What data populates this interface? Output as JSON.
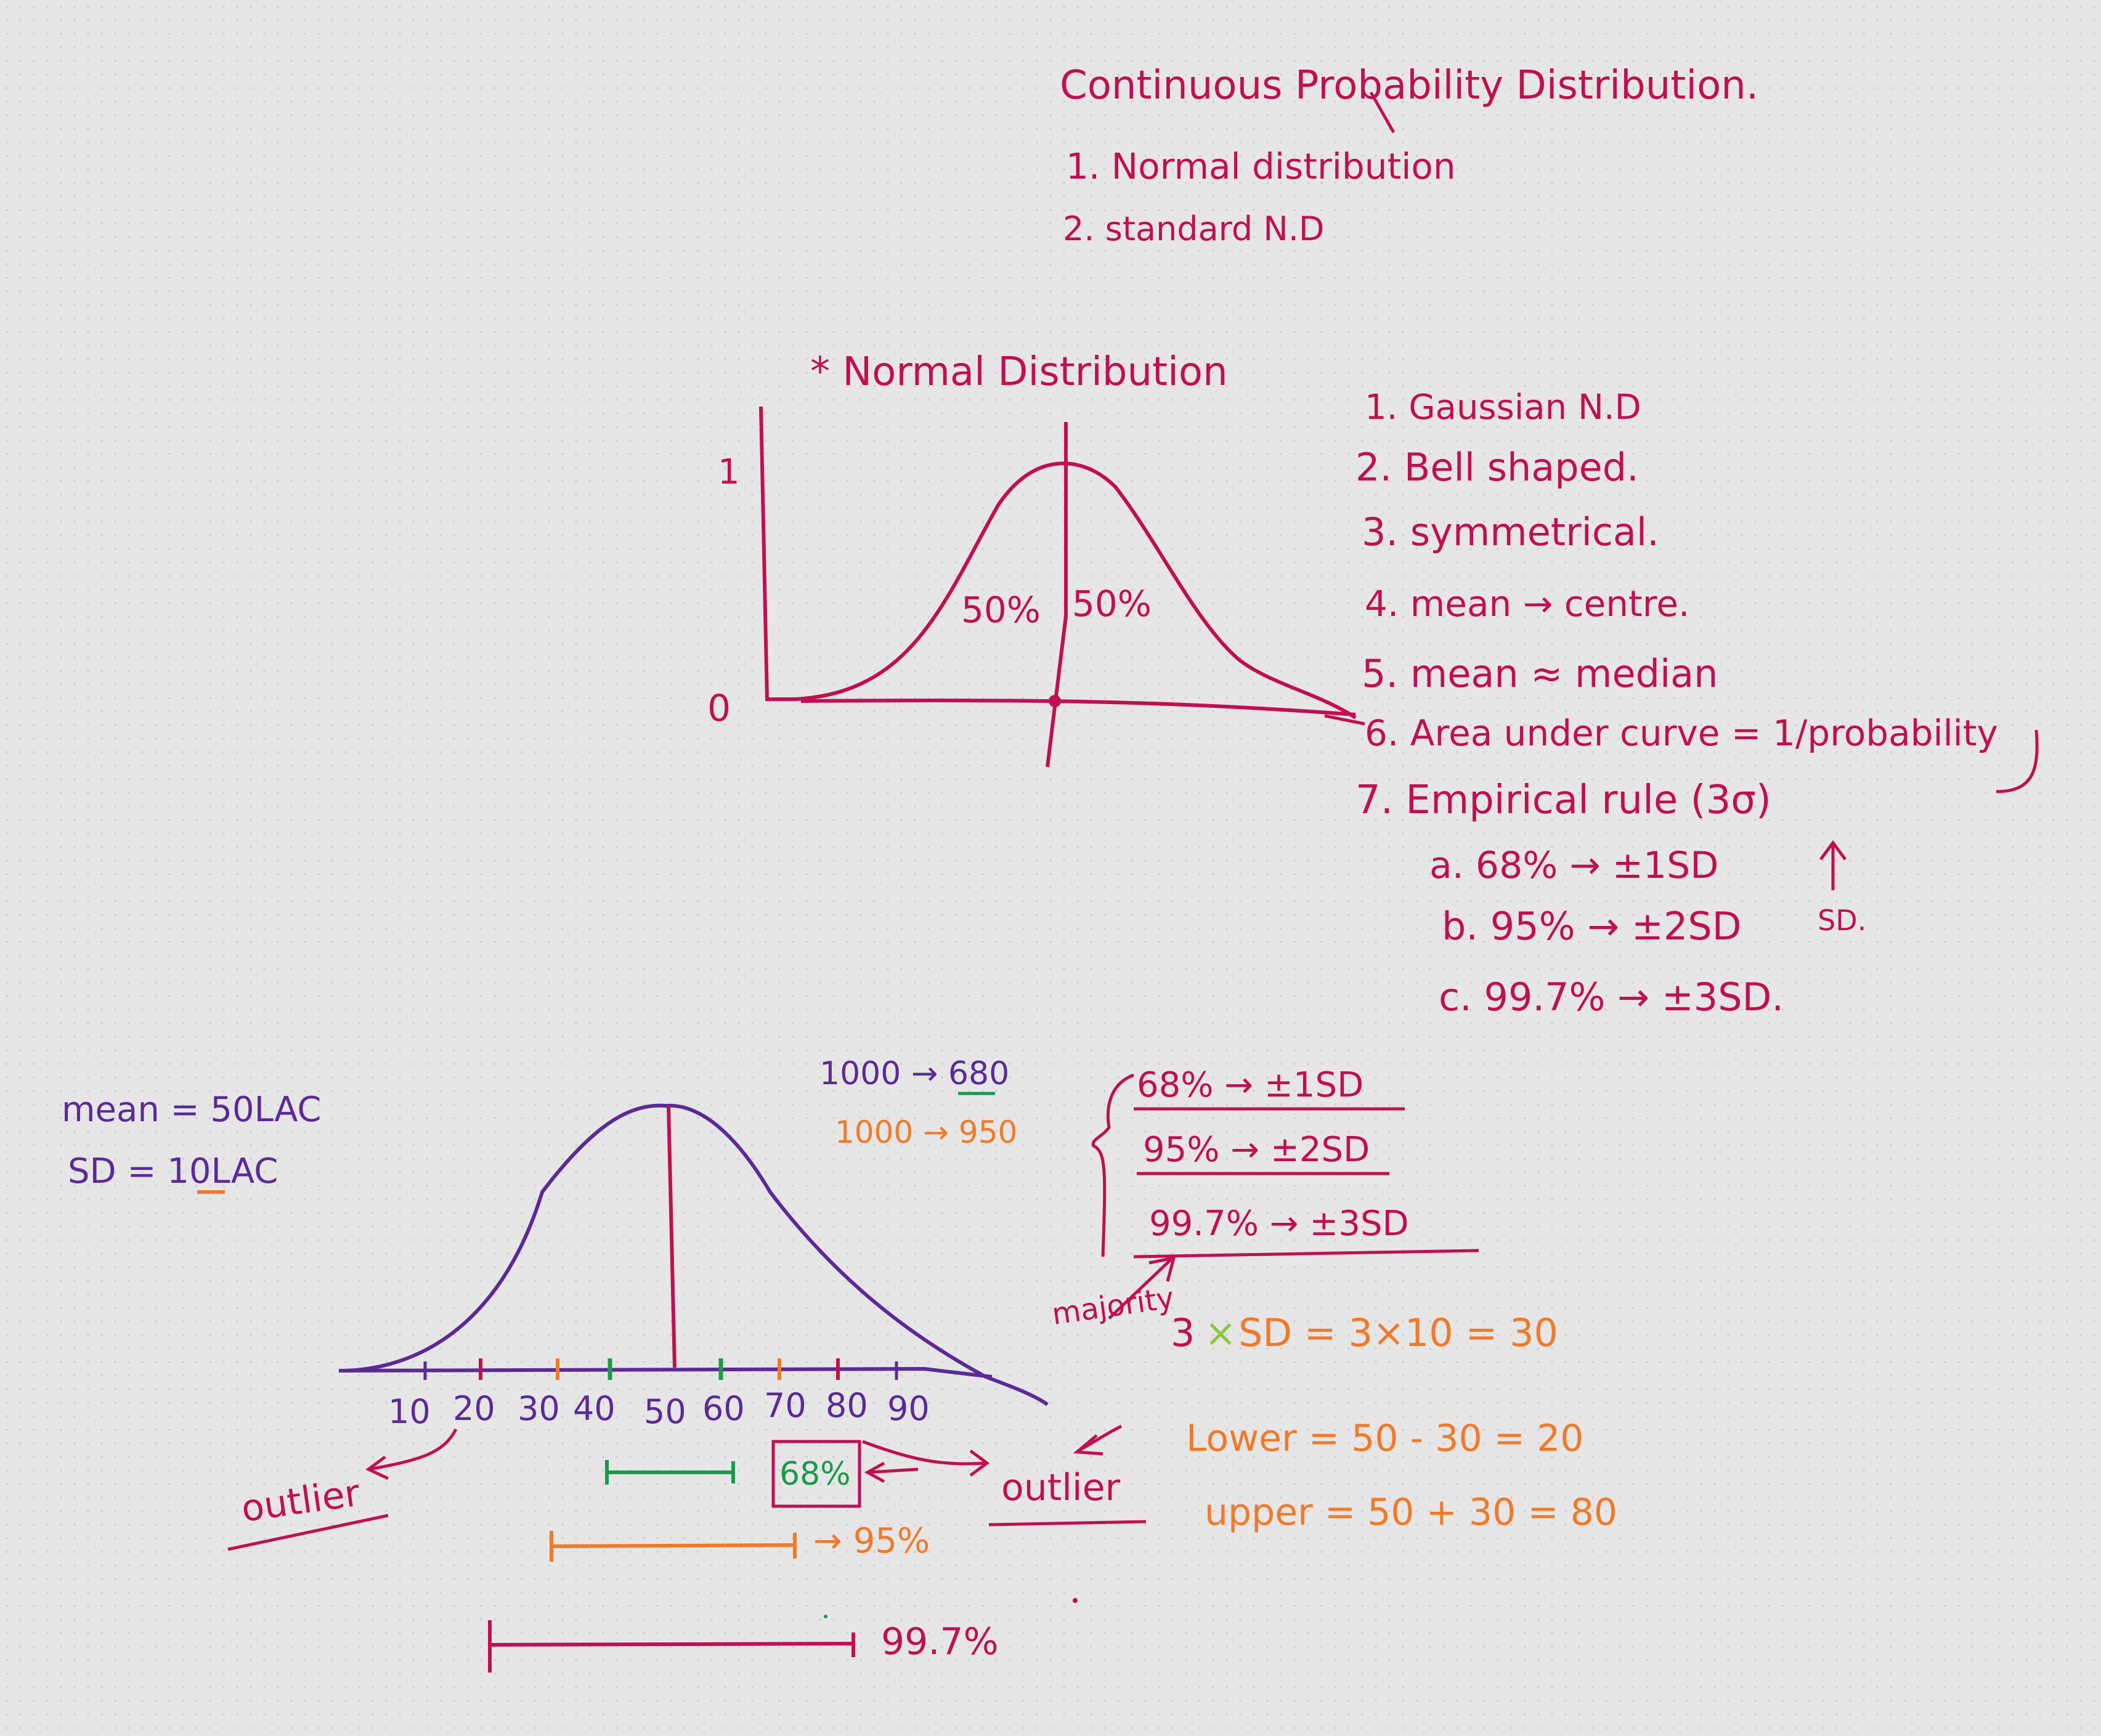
{
  "colors": {
    "crimson": "#c0104f",
    "purple": "#5b2a96",
    "green": "#1a9a4a",
    "orange": "#f07a2a",
    "lime": "#8cc63f"
  },
  "header": {
    "title": "Continuous Probability Distribution.",
    "item1": "1. Normal distribution",
    "item2": "2. standard N.D"
  },
  "nd_section": {
    "heading": "* Normal Distribution",
    "axis_top": "1",
    "axis_zero": "0",
    "left_area": "50%",
    "right_area": "50%"
  },
  "properties": [
    "1. Gaussian N.D",
    "2. Bell shaped.",
    "3. symmetrical.",
    "4. mean → centre.",
    "5. mean ≈ median",
    "6. Area under curve = 1/probability",
    "7. Empirical rule (3σ)"
  ],
  "empirical": [
    "a. 68% → ±1SD",
    "b. 95% → ±2SD",
    "c. 99.7% → ±3SD."
  ],
  "sigma_note": "SD.",
  "example": {
    "mean": "mean = 50LAC",
    "sd": "SD = 10LAC",
    "count68": "1000 → 680",
    "count95": "1000 → 950",
    "rule1": "68% → ±1SD",
    "rule2": "95% → ±2SD",
    "rule3": "99.7% → ±3SD",
    "majority": "majority",
    "calc_3": "3",
    "calc_x": "×",
    "calc_rest": "SD = 3×10 = 30",
    "lower": "Lower = 50 - 30 = 20",
    "upper": "upper = 50 + 30 = 80",
    "ticks": [
      "10",
      "20",
      "30",
      "40",
      "50",
      "60",
      "70",
      "80",
      "90"
    ],
    "outlier_left": "outlier",
    "outlier_right": "outlier",
    "range68": "68%",
    "range95": "→ 95%",
    "range997": "99.7%"
  }
}
